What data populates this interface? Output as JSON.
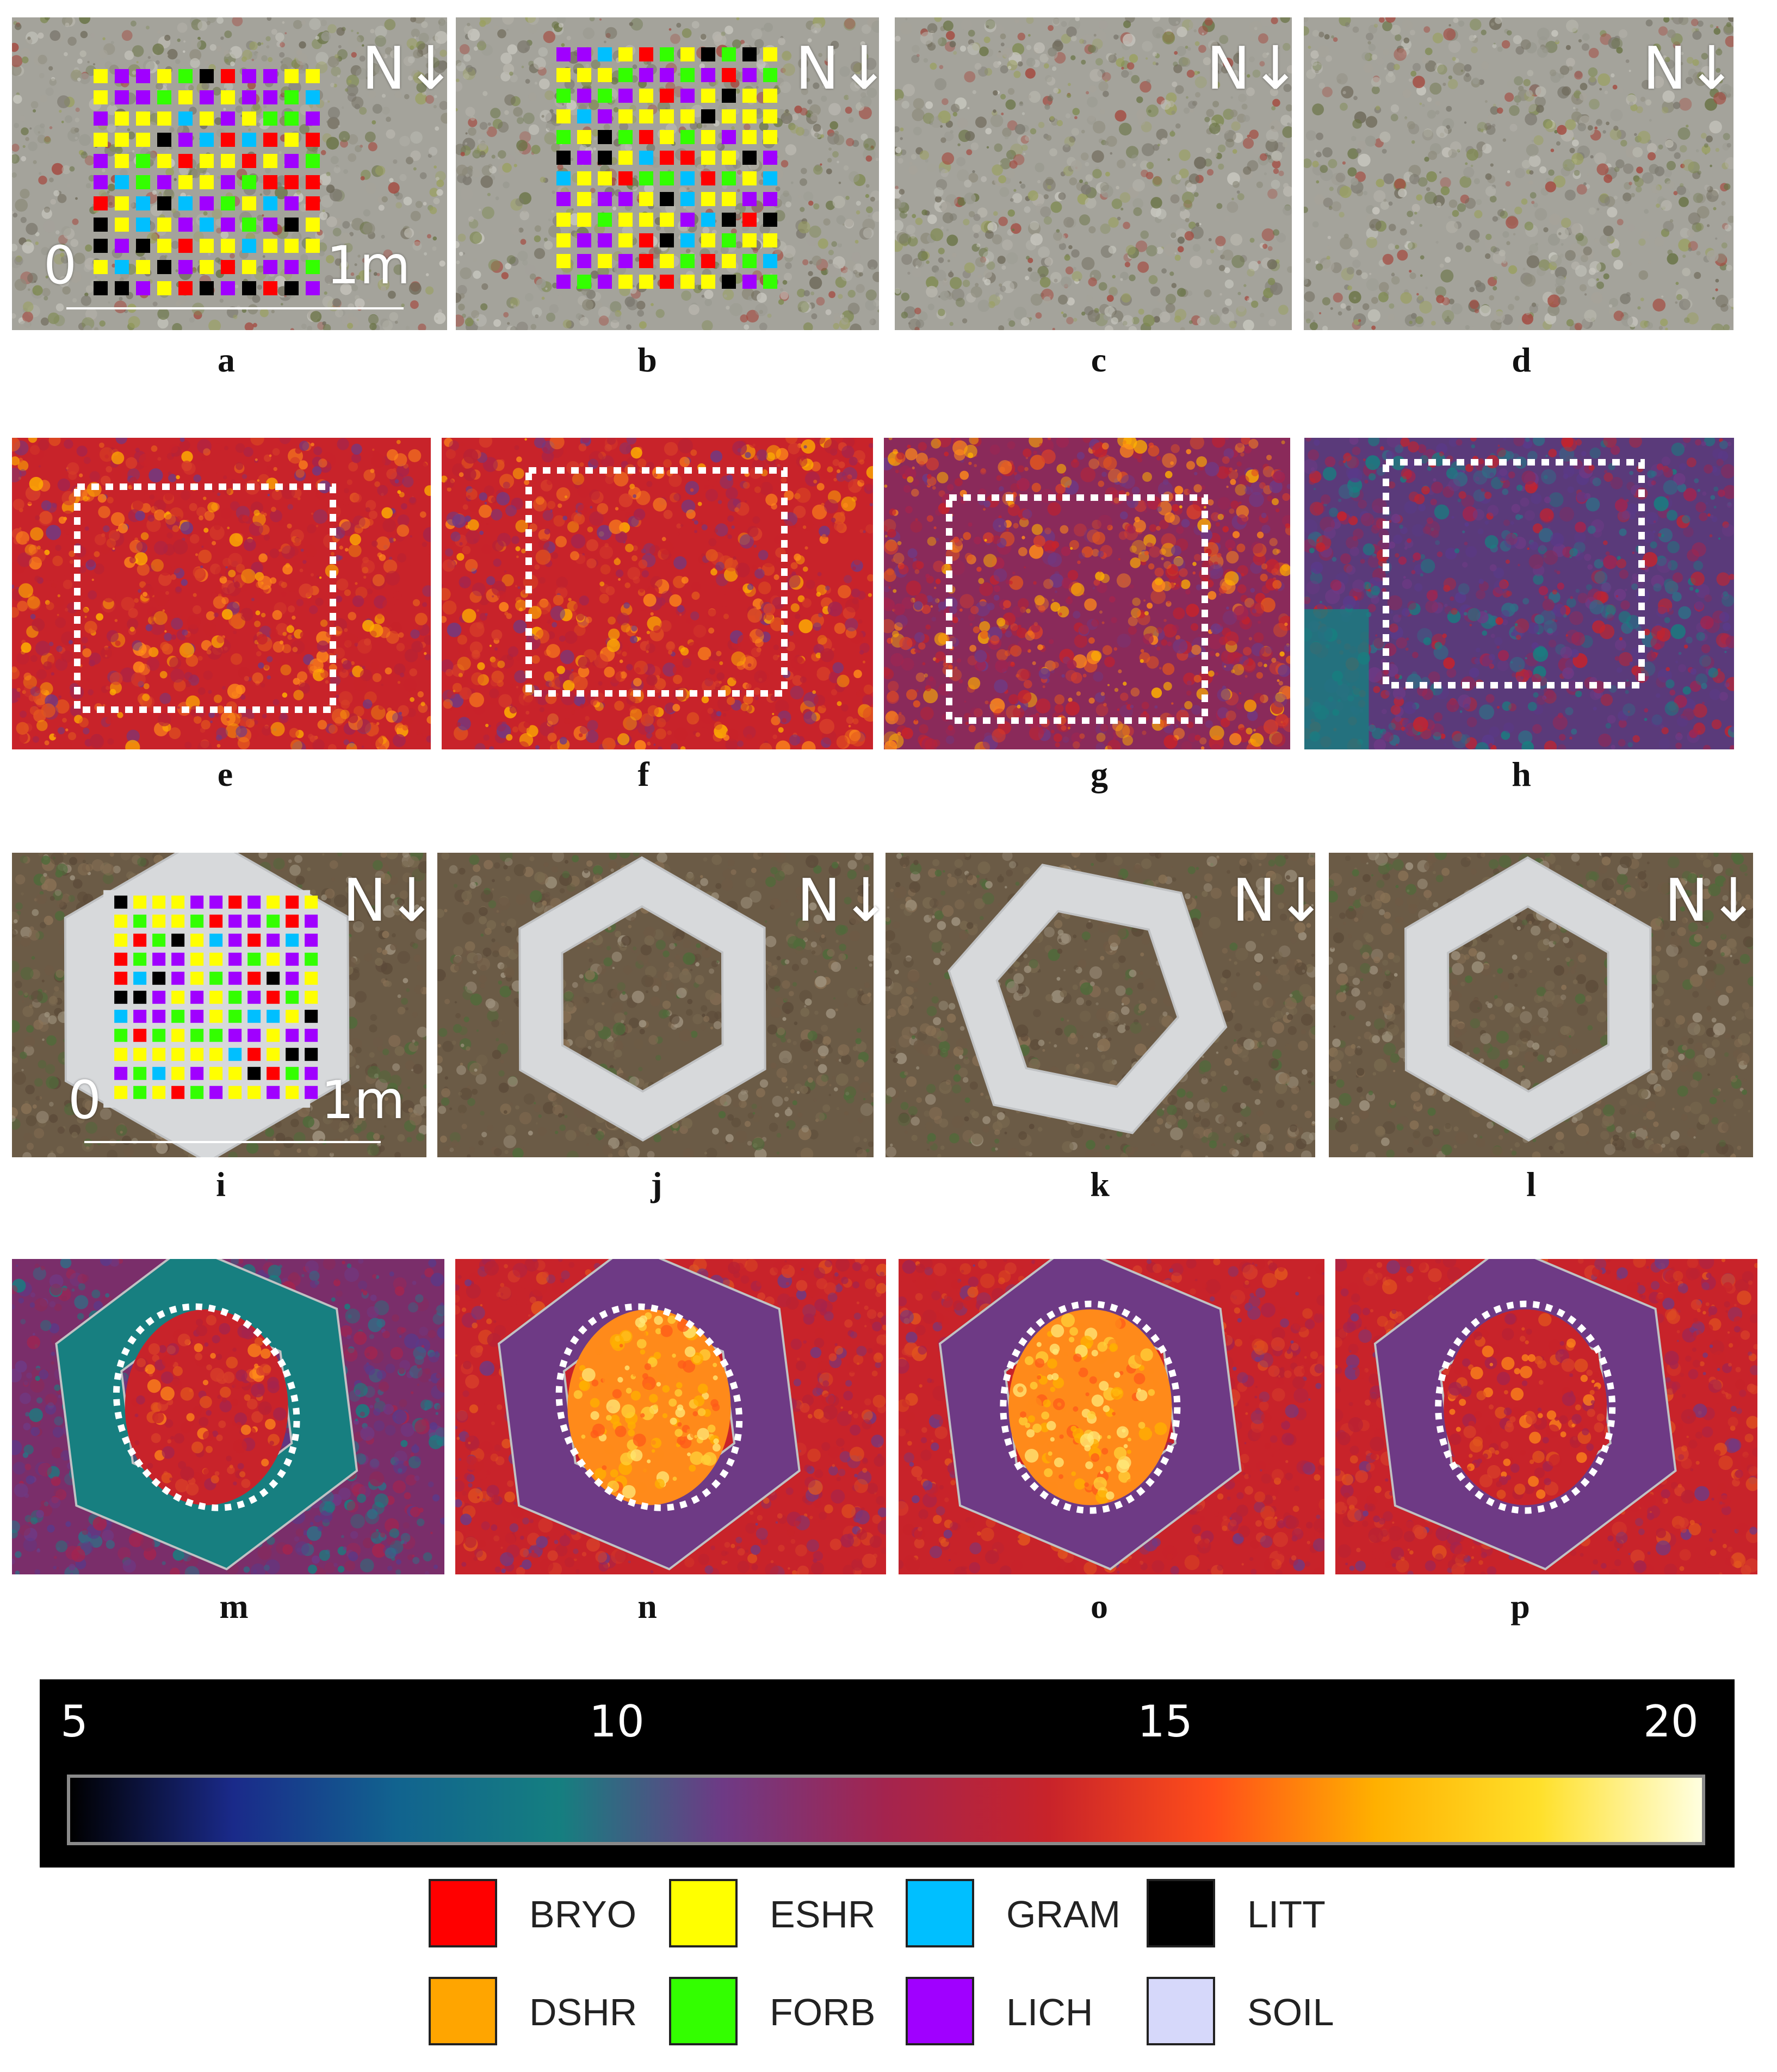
{
  "panels": [
    {
      "id": "a",
      "label": "a",
      "kind": "photo-quadrat",
      "north": "N",
      "scale": {
        "start": "0",
        "end": "1m"
      }
    },
    {
      "id": "b",
      "label": "b",
      "kind": "photo-quadrat",
      "north": "N"
    },
    {
      "id": "c",
      "label": "c",
      "kind": "photo",
      "north": "N"
    },
    {
      "id": "d",
      "label": "d",
      "kind": "photo",
      "north": "N"
    },
    {
      "id": "e",
      "label": "e",
      "kind": "thermal-square"
    },
    {
      "id": "f",
      "label": "f",
      "kind": "thermal-square"
    },
    {
      "id": "g",
      "label": "g",
      "kind": "thermal-square"
    },
    {
      "id": "h",
      "label": "h",
      "kind": "thermal-square"
    },
    {
      "id": "i",
      "label": "i",
      "kind": "photo-hexagon-quadrat",
      "north": "N",
      "scale": {
        "start": "0",
        "end": "1m"
      }
    },
    {
      "id": "j",
      "label": "j",
      "kind": "photo-hexagon",
      "north": "N"
    },
    {
      "id": "k",
      "label": "k",
      "kind": "photo-hexagon",
      "north": "N"
    },
    {
      "id": "l",
      "label": "l",
      "kind": "photo-hexagon",
      "north": "N"
    },
    {
      "id": "m",
      "label": "m",
      "kind": "thermal-ellipse"
    },
    {
      "id": "n",
      "label": "n",
      "kind": "thermal-ellipse"
    },
    {
      "id": "o",
      "label": "o",
      "kind": "thermal-ellipse"
    },
    {
      "id": "p",
      "label": "p",
      "kind": "thermal-ellipse"
    }
  ],
  "colorbar": {
    "ticks": [
      "5",
      "10",
      "15",
      "20"
    ],
    "min": 5,
    "max": 20,
    "colors": [
      "#000000",
      "#1a2a8a",
      "#11638f",
      "#157f80",
      "#6e3a85",
      "#a4244e",
      "#c8232a",
      "#ff4e1a",
      "#ffb000",
      "#ffe02a",
      "#ffffe0"
    ]
  },
  "legend": [
    {
      "code": "BRYO",
      "color": "#ff0000"
    },
    {
      "code": "ESHR",
      "color": "#ffff00"
    },
    {
      "code": "GRAM",
      "color": "#00bfff"
    },
    {
      "code": "LITT",
      "color": "#000000"
    },
    {
      "code": "DSHR",
      "color": "#ffa500"
    },
    {
      "code": "FORB",
      "color": "#33ff00"
    },
    {
      "code": "LICH",
      "color": "#a000ff"
    },
    {
      "code": "SOIL",
      "color": "#d6d8fa"
    }
  ]
}
